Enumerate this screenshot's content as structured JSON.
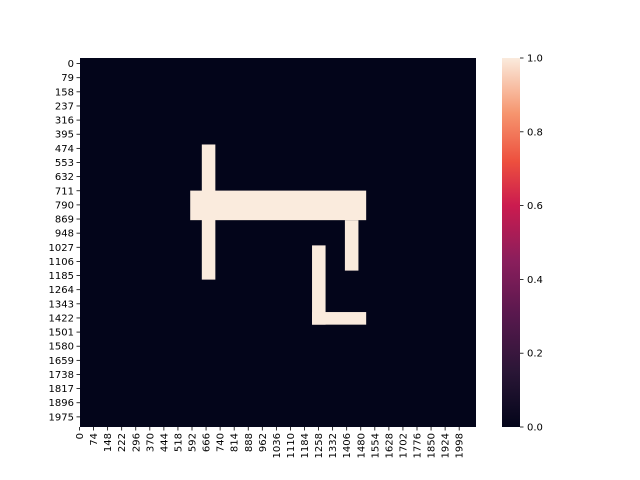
{
  "chart_data": {
    "type": "heatmap",
    "title": "",
    "xlabel": "",
    "ylabel": "",
    "grid": false,
    "x_tick_labels": [
      "0",
      "74",
      "148",
      "222",
      "296",
      "370",
      "444",
      "518",
      "592",
      "666",
      "740",
      "814",
      "888",
      "962",
      "1036",
      "1110",
      "1184",
      "1258",
      "1332",
      "1406",
      "1480",
      "1554",
      "1628",
      "1702",
      "1776",
      "1850",
      "1924",
      "1998"
    ],
    "y_tick_labels": [
      "0",
      "79",
      "158",
      "237",
      "316",
      "395",
      "474",
      "553",
      "632",
      "711",
      "790",
      "869",
      "948",
      "1027",
      "1106",
      "1185",
      "1264",
      "1343",
      "1422",
      "1501",
      "1580",
      "1659",
      "1738",
      "1817",
      "1896",
      "1975"
    ],
    "xlim": [
      0,
      2048
    ],
    "ylim": [
      0,
      2048
    ],
    "value_range": [
      0,
      1
    ],
    "background_value": 0.0,
    "cells_value_1": [
      {
        "x": [
          630,
          700
        ],
        "y": [
          480,
          1230
        ]
      },
      {
        "x": [
          570,
          1480
        ],
        "y": [
          736,
          900
        ]
      },
      {
        "x": [
          1370,
          1440
        ],
        "y": [
          900,
          1180
        ]
      },
      {
        "x": [
          1200,
          1270
        ],
        "y": [
          1040,
          1480
        ]
      },
      {
        "x": [
          1200,
          1480
        ],
        "y": [
          1410,
          1480
        ]
      }
    ],
    "colorbar": {
      "ticks": [
        "0.0",
        "0.2",
        "0.4",
        "0.6",
        "0.8",
        "1.0"
      ],
      "colormap": "rocket",
      "low_color": "#03051a",
      "high_color": "#faebdd"
    }
  }
}
